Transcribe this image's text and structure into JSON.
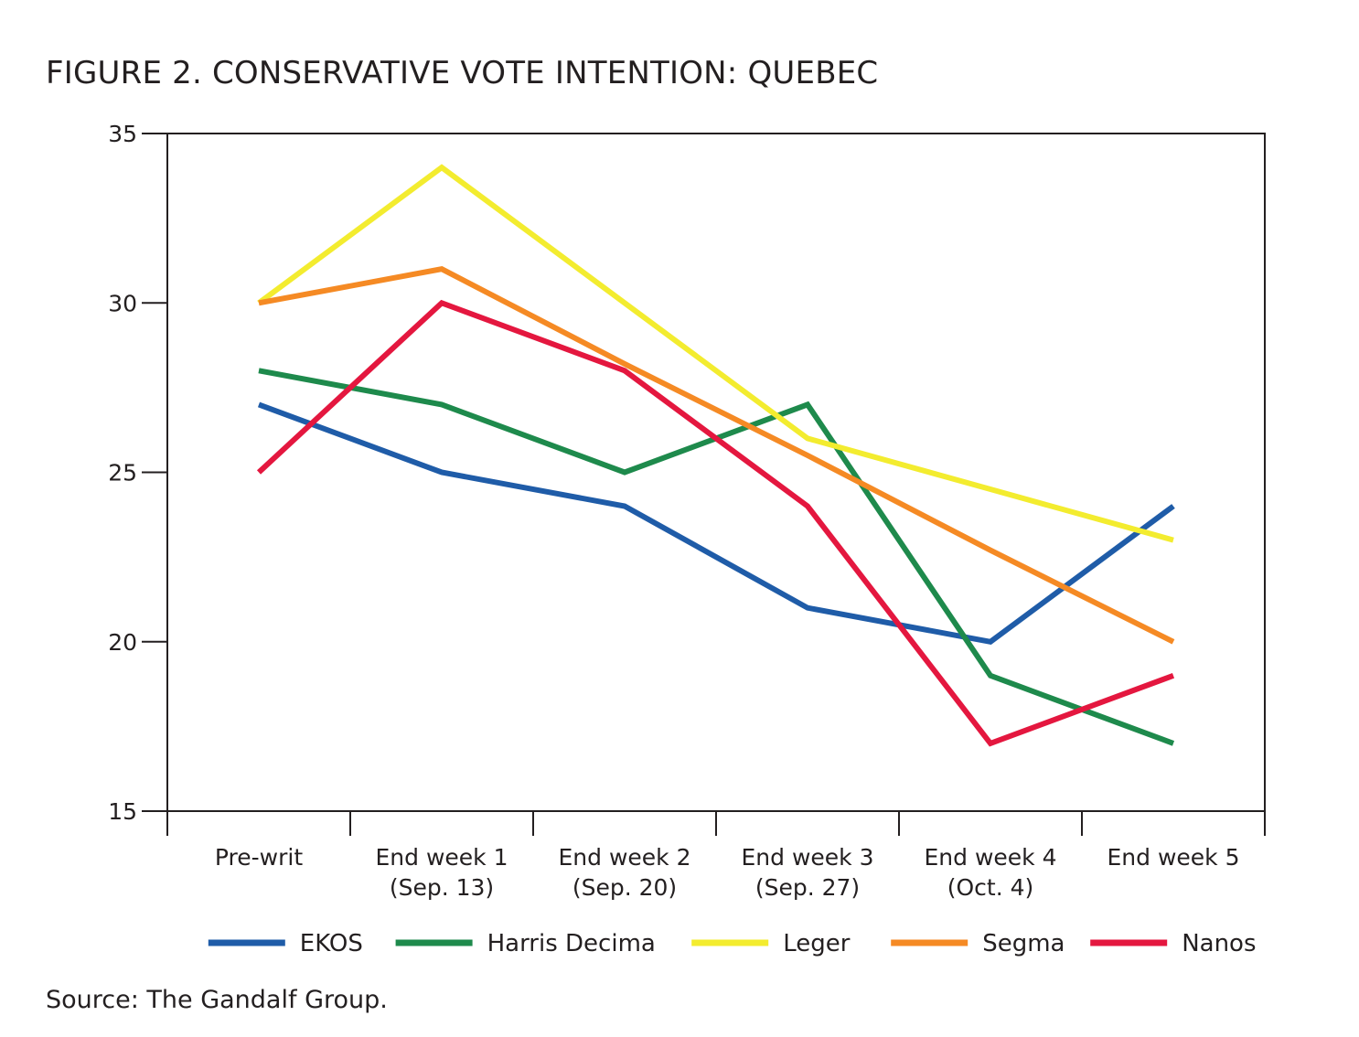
{
  "title": "FIGURE 2. CONSERVATIVE VOTE INTENTION: QUEBEC",
  "source": "Source: The Gandalf Group.",
  "chart_data": {
    "type": "line",
    "categories": [
      [
        "Pre-writ"
      ],
      [
        "End week 1",
        "(Sep. 13)"
      ],
      [
        "End week 2",
        "(Sep. 20)"
      ],
      [
        "End week 3",
        "(Sep. 27)"
      ],
      [
        "End week 4",
        "(Oct. 4)"
      ],
      [
        "End week 5"
      ]
    ],
    "ylim": [
      15,
      35
    ],
    "yticks": [
      15,
      20,
      25,
      30,
      35
    ],
    "grid": false,
    "legend_position": "bottom",
    "series": [
      {
        "name": "EKOS",
        "color": "#1f5ca8",
        "values": [
          27,
          25,
          24,
          21,
          20,
          24
        ]
      },
      {
        "name": "Harris Decima",
        "color": "#1e8a4c",
        "values": [
          28,
          27,
          25,
          27,
          19,
          17
        ]
      },
      {
        "name": "Leger",
        "color": "#f3ec2f",
        "values": [
          30,
          34,
          30,
          26,
          24.5,
          23
        ]
      },
      {
        "name": "Segma",
        "color": "#f58a24",
        "values": [
          30,
          31,
          28.2,
          25.5,
          22.7,
          20
        ]
      },
      {
        "name": "Nanos",
        "color": "#e4173f",
        "values": [
          25,
          30,
          28,
          24,
          17,
          19
        ]
      }
    ]
  }
}
